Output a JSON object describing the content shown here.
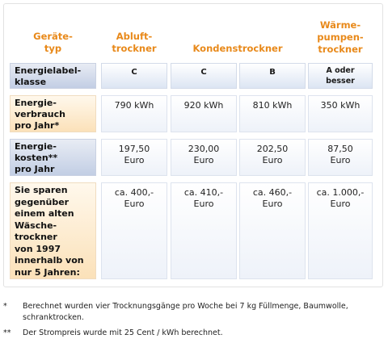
{
  "headers": {
    "type": "Geräte-\ntyp",
    "exhaust": "Abluft-\ntrockner",
    "condenser": "Kondenstrockner",
    "heatpump": "Wärme-\npumpen-\ntrockner"
  },
  "rows": {
    "energy_label": {
      "label": "Energielabel-\nklasse",
      "values": [
        "C",
        "C",
        "B",
        "A oder\nbesser"
      ]
    },
    "consumption": {
      "label": "Energie-\nverbrauch\npro Jahr*",
      "values": [
        "790 kWh",
        "920 kWh",
        "810 kWh",
        "350 kWh"
      ]
    },
    "costs": {
      "label": "Energie-\nkosten**\npro Jahr",
      "values": [
        "197,50\nEuro",
        "230,00\nEuro",
        "202,50\nEuro",
        "87,50\nEuro"
      ]
    },
    "savings": {
      "label": "Sie sparen\ngegenüber\neinem alten\nWäsche-\ntrockner\nvon 1997\ninnerhalb von\nnur 5 Jahren:",
      "values": [
        "ca. 400,-\nEuro",
        "ca. 410,-\nEuro",
        "ca. 460,-\nEuro",
        "ca. 1.000,-\nEuro"
      ]
    }
  },
  "footnotes": [
    {
      "mark": "*",
      "text": "Berechnet wurden vier Trocknungsgänge pro Woche bei 7 kg Füllmenge, Baumwolle, schranktrocken."
    },
    {
      "mark": "**",
      "text": "Der Strompreis wurde mit 25 Cent / kWh berechnet."
    }
  ],
  "colors": {
    "header_orange": "#e8891a",
    "label_blue": "#c2cee4",
    "label_orange": "#fbe1b9"
  }
}
